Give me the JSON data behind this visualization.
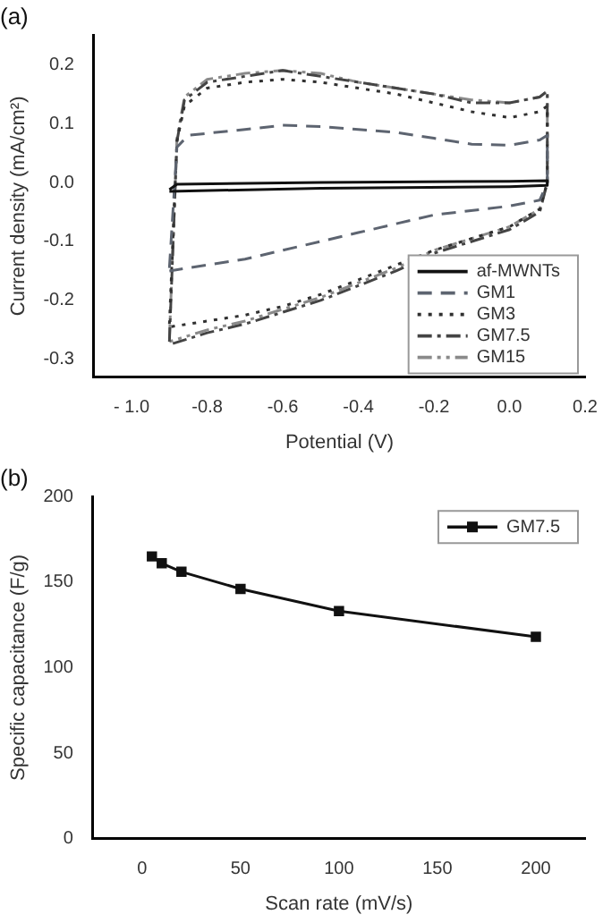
{
  "chart_data": [
    {
      "type": "line",
      "title": "(a)",
      "xlabel": "Potential (V)",
      "ylabel": "Current density (mA/cm²)",
      "xlim": [
        -1.1,
        0.2
      ],
      "xticks": [
        {
          "value": -1.0,
          "label": "- 1.0"
        },
        -0.8,
        -0.6,
        -0.4,
        -0.2,
        {
          "value": 0,
          "label": "0.0"
        },
        0.2
      ],
      "ylim": [
        -0.33,
        0.25
      ],
      "yticks": [
        -0.3,
        -0.2,
        -0.1,
        {
          "value": 0,
          "label": "0.0"
        },
        0.1,
        0.2
      ],
      "legend": "bottom right",
      "grid": false,
      "marker": "none",
      "series": [
        {
          "name": "af-MWNTs",
          "color": "#111111",
          "line_style": "solid",
          "x": [
            -0.9,
            -0.88,
            -0.5,
            0,
            0.1,
            0.1,
            0,
            -0.5,
            -0.9
          ],
          "values": [
            -0.012,
            -0.003,
            0,
            0.002,
            0.003,
            -0.005,
            -0.007,
            -0.01,
            -0.015
          ]
        },
        {
          "name": "GM1",
          "color": "#5d6470",
          "line_style": "dashed",
          "x": [
            -0.9,
            -0.88,
            -0.85,
            -0.7,
            -0.6,
            -0.5,
            -0.4,
            -0.3,
            -0.2,
            -0.1,
            0,
            0.08,
            0.1,
            0.1,
            0.08,
            0,
            -0.2,
            -0.3,
            -0.4,
            -0.5,
            -0.6,
            -0.7,
            -0.8,
            -0.9
          ],
          "values": [
            -0.145,
            0.06,
            0.08,
            0.09,
            0.097,
            0.095,
            0.09,
            0.085,
            0.075,
            0.065,
            0.063,
            0.072,
            0.08,
            0,
            -0.03,
            -0.04,
            -0.055,
            -0.07,
            -0.085,
            -0.1,
            -0.115,
            -0.13,
            -0.14,
            -0.15
          ]
        },
        {
          "name": "GM3",
          "color": "#303030",
          "line_style": "dotted",
          "x": [
            -0.9,
            -0.88,
            -0.86,
            -0.8,
            -0.7,
            -0.6,
            -0.5,
            -0.4,
            -0.3,
            -0.2,
            -0.1,
            0,
            0.08,
            0.1,
            0.1,
            0.08,
            0,
            -0.1,
            -0.2,
            -0.3,
            -0.4,
            -0.5,
            -0.6,
            -0.7,
            -0.8,
            -0.9
          ],
          "values": [
            -0.24,
            0.07,
            0.13,
            0.16,
            0.17,
            0.175,
            0.17,
            0.16,
            0.15,
            0.135,
            0.12,
            0.11,
            0.12,
            0.13,
            0,
            -0.045,
            -0.075,
            -0.095,
            -0.115,
            -0.14,
            -0.165,
            -0.19,
            -0.21,
            -0.225,
            -0.235,
            -0.245
          ]
        },
        {
          "name": "GM7.5",
          "color": "#444444",
          "line_style": "dashdot",
          "x": [
            -0.9,
            -0.88,
            -0.86,
            -0.8,
            -0.7,
            -0.6,
            -0.5,
            -0.4,
            -0.3,
            -0.2,
            -0.1,
            0,
            0.08,
            0.1,
            0.1,
            0.08,
            0,
            -0.1,
            -0.2,
            -0.3,
            -0.4,
            -0.5,
            -0.6,
            -0.7,
            -0.8,
            -0.9
          ],
          "values": [
            -0.27,
            0.07,
            0.14,
            0.17,
            0.18,
            0.19,
            0.18,
            0.17,
            0.16,
            0.15,
            0.135,
            0.135,
            0.145,
            0.155,
            0,
            -0.05,
            -0.08,
            -0.1,
            -0.12,
            -0.15,
            -0.175,
            -0.2,
            -0.22,
            -0.24,
            -0.255,
            -0.275
          ]
        },
        {
          "name": "GM15",
          "color": "#8a8a8a",
          "line_style": "dashdotdot",
          "x": [
            -0.9,
            -0.88,
            -0.86,
            -0.8,
            -0.7,
            -0.6,
            -0.5,
            -0.4,
            -0.3,
            -0.2,
            -0.1,
            0,
            0.08,
            0.1,
            0.1,
            0.08,
            0,
            -0.1,
            -0.2,
            -0.3,
            -0.4,
            -0.5,
            -0.6,
            -0.7,
            -0.8,
            -0.9
          ],
          "values": [
            -0.265,
            0.075,
            0.145,
            0.175,
            0.185,
            0.19,
            0.185,
            0.17,
            0.16,
            0.15,
            0.14,
            0.135,
            0.145,
            0.155,
            0,
            -0.045,
            -0.075,
            -0.095,
            -0.115,
            -0.145,
            -0.17,
            -0.195,
            -0.215,
            -0.235,
            -0.25,
            -0.27
          ]
        }
      ]
    },
    {
      "type": "line",
      "title": "(b)",
      "xlabel": "Scan rate (mV/s)",
      "ylabel": "Specific capacitance (F/g)",
      "xlim": [
        -25,
        225
      ],
      "xticks": [
        0,
        50,
        100,
        150,
        200
      ],
      "ylim": [
        0,
        200
      ],
      "yticks": [
        0,
        50,
        100,
        150,
        200
      ],
      "legend": "top right",
      "grid": false,
      "marker": "square",
      "series": [
        {
          "name": "GM7.5",
          "color": "#111111",
          "line_style": "solid",
          "x": [
            5,
            10,
            20,
            50,
            100,
            200
          ],
          "values": [
            165,
            161,
            156,
            146,
            133,
            118
          ]
        }
      ]
    }
  ]
}
